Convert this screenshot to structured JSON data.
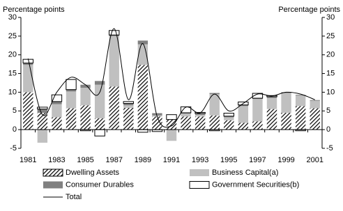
{
  "chart_data": {
    "type": "bar",
    "stacked": true,
    "y_label": "Percentage points",
    "y2_label": "Percentage points",
    "categories": [
      "1981",
      null,
      "1983",
      null,
      "1985",
      null,
      "1987",
      null,
      "1989",
      null,
      "1991",
      null,
      "1993",
      null,
      "1995",
      null,
      "1997",
      null,
      "1999",
      null,
      "2001"
    ],
    "series": [
      {
        "name": "Dwelling Assets",
        "color": "#000000",
        "pattern": "hatch",
        "values": [
          10,
          4.5,
          3.3,
          5.7,
          6.5,
          3,
          11.5,
          5.8,
          17.3,
          3.5,
          2.7,
          3.5,
          3.5,
          3.8,
          2.5,
          1.8,
          2.2,
          5.5,
          4.5,
          6.3,
          5.7
        ]
      },
      {
        "name": "Business Capital(a)",
        "color": "#c0c0c0",
        "values": [
          7.3,
          -3.5,
          3.5,
          4.5,
          4.7,
          9,
          13.5,
          0.7,
          5.5,
          0.3,
          -3,
          0.8,
          0.5,
          5.7,
          0.8,
          4.5,
          6,
          3,
          5.3,
          2.8,
          2
        ]
      },
      {
        "name": "Consumer Durables",
        "color": "#808080",
        "values": [
          0.5,
          1,
          0.7,
          0.5,
          0.8,
          1,
          0.3,
          0.5,
          1,
          0.6,
          0,
          0.2,
          0.3,
          0.3,
          0.3,
          0.3,
          0.2,
          0.3,
          0.2,
          0.2,
          0.2
        ]
      },
      {
        "name": "Government Securities(b)",
        "color": "#ffffff",
        "values": [
          1,
          0.5,
          1.8,
          2.7,
          -0.3,
          -1.7,
          1.2,
          0.5,
          -0.7,
          -0.5,
          1.3,
          1.6,
          0.3,
          -0.3,
          0.8,
          0.8,
          1.3,
          0.3,
          0,
          -0.3,
          0
        ]
      },
      {
        "name": "Total",
        "type": "line",
        "color": "#000000",
        "values": [
          19,
          4,
          10,
          14,
          12,
          10,
          27,
          8,
          23,
          3.5,
          1,
          6,
          4.5,
          9.5,
          5,
          7,
          9.5,
          9,
          10,
          9.5,
          8
        ]
      }
    ],
    "ylim": [
      -5,
      30
    ],
    "yticks": [
      -5,
      0,
      5,
      10,
      15,
      20,
      25,
      30
    ],
    "y2lim": [
      -5,
      30
    ],
    "y2ticks": [
      -5,
      0,
      5,
      10,
      15,
      20,
      25,
      30
    ],
    "legend": "bottom"
  }
}
